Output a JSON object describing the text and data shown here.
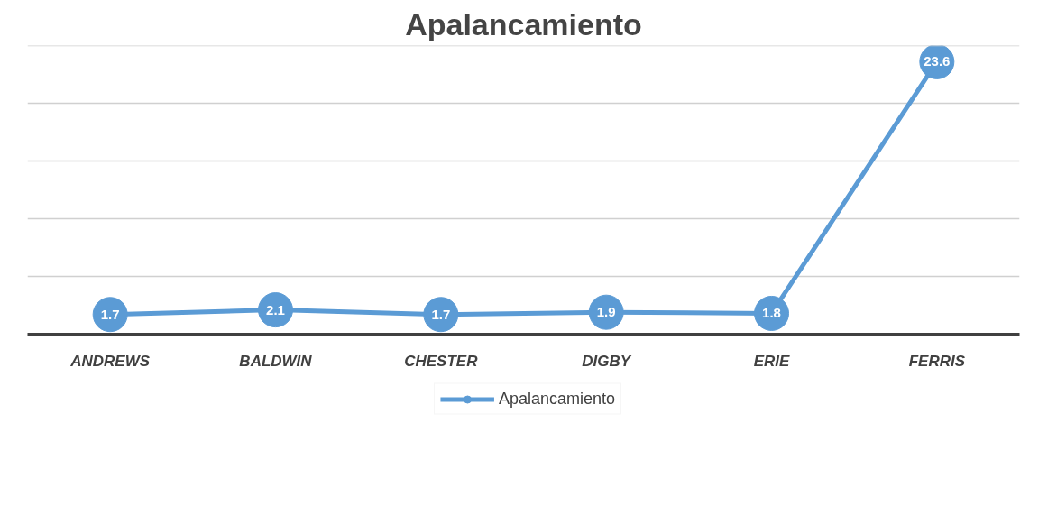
{
  "chart_data": {
    "type": "line",
    "title": "Apalancamiento",
    "categories": [
      "ANDREWS",
      "BALDWIN",
      "CHESTER",
      "DIGBY",
      "ERIE",
      "FERRIS"
    ],
    "series": [
      {
        "name": "Apalancamiento",
        "color": "#5b9bd5",
        "values": [
          1.7,
          2.1,
          1.7,
          1.9,
          1.8,
          23.6
        ]
      }
    ],
    "ylim": [
      0,
      25
    ],
    "yticks": [
      {
        "value": 0,
        "label": null
      },
      {
        "value": 5,
        "label": null
      },
      {
        "value": 10,
        "label": null
      },
      {
        "value": 15,
        "label": null
      },
      {
        "value": 20,
        "label": null
      },
      {
        "value": 25,
        "label": null
      }
    ],
    "tick_labels": "x",
    "grid": "y",
    "legend": "bottom",
    "marker": "circle",
    "line_style": "solid",
    "data_labels": true
  }
}
